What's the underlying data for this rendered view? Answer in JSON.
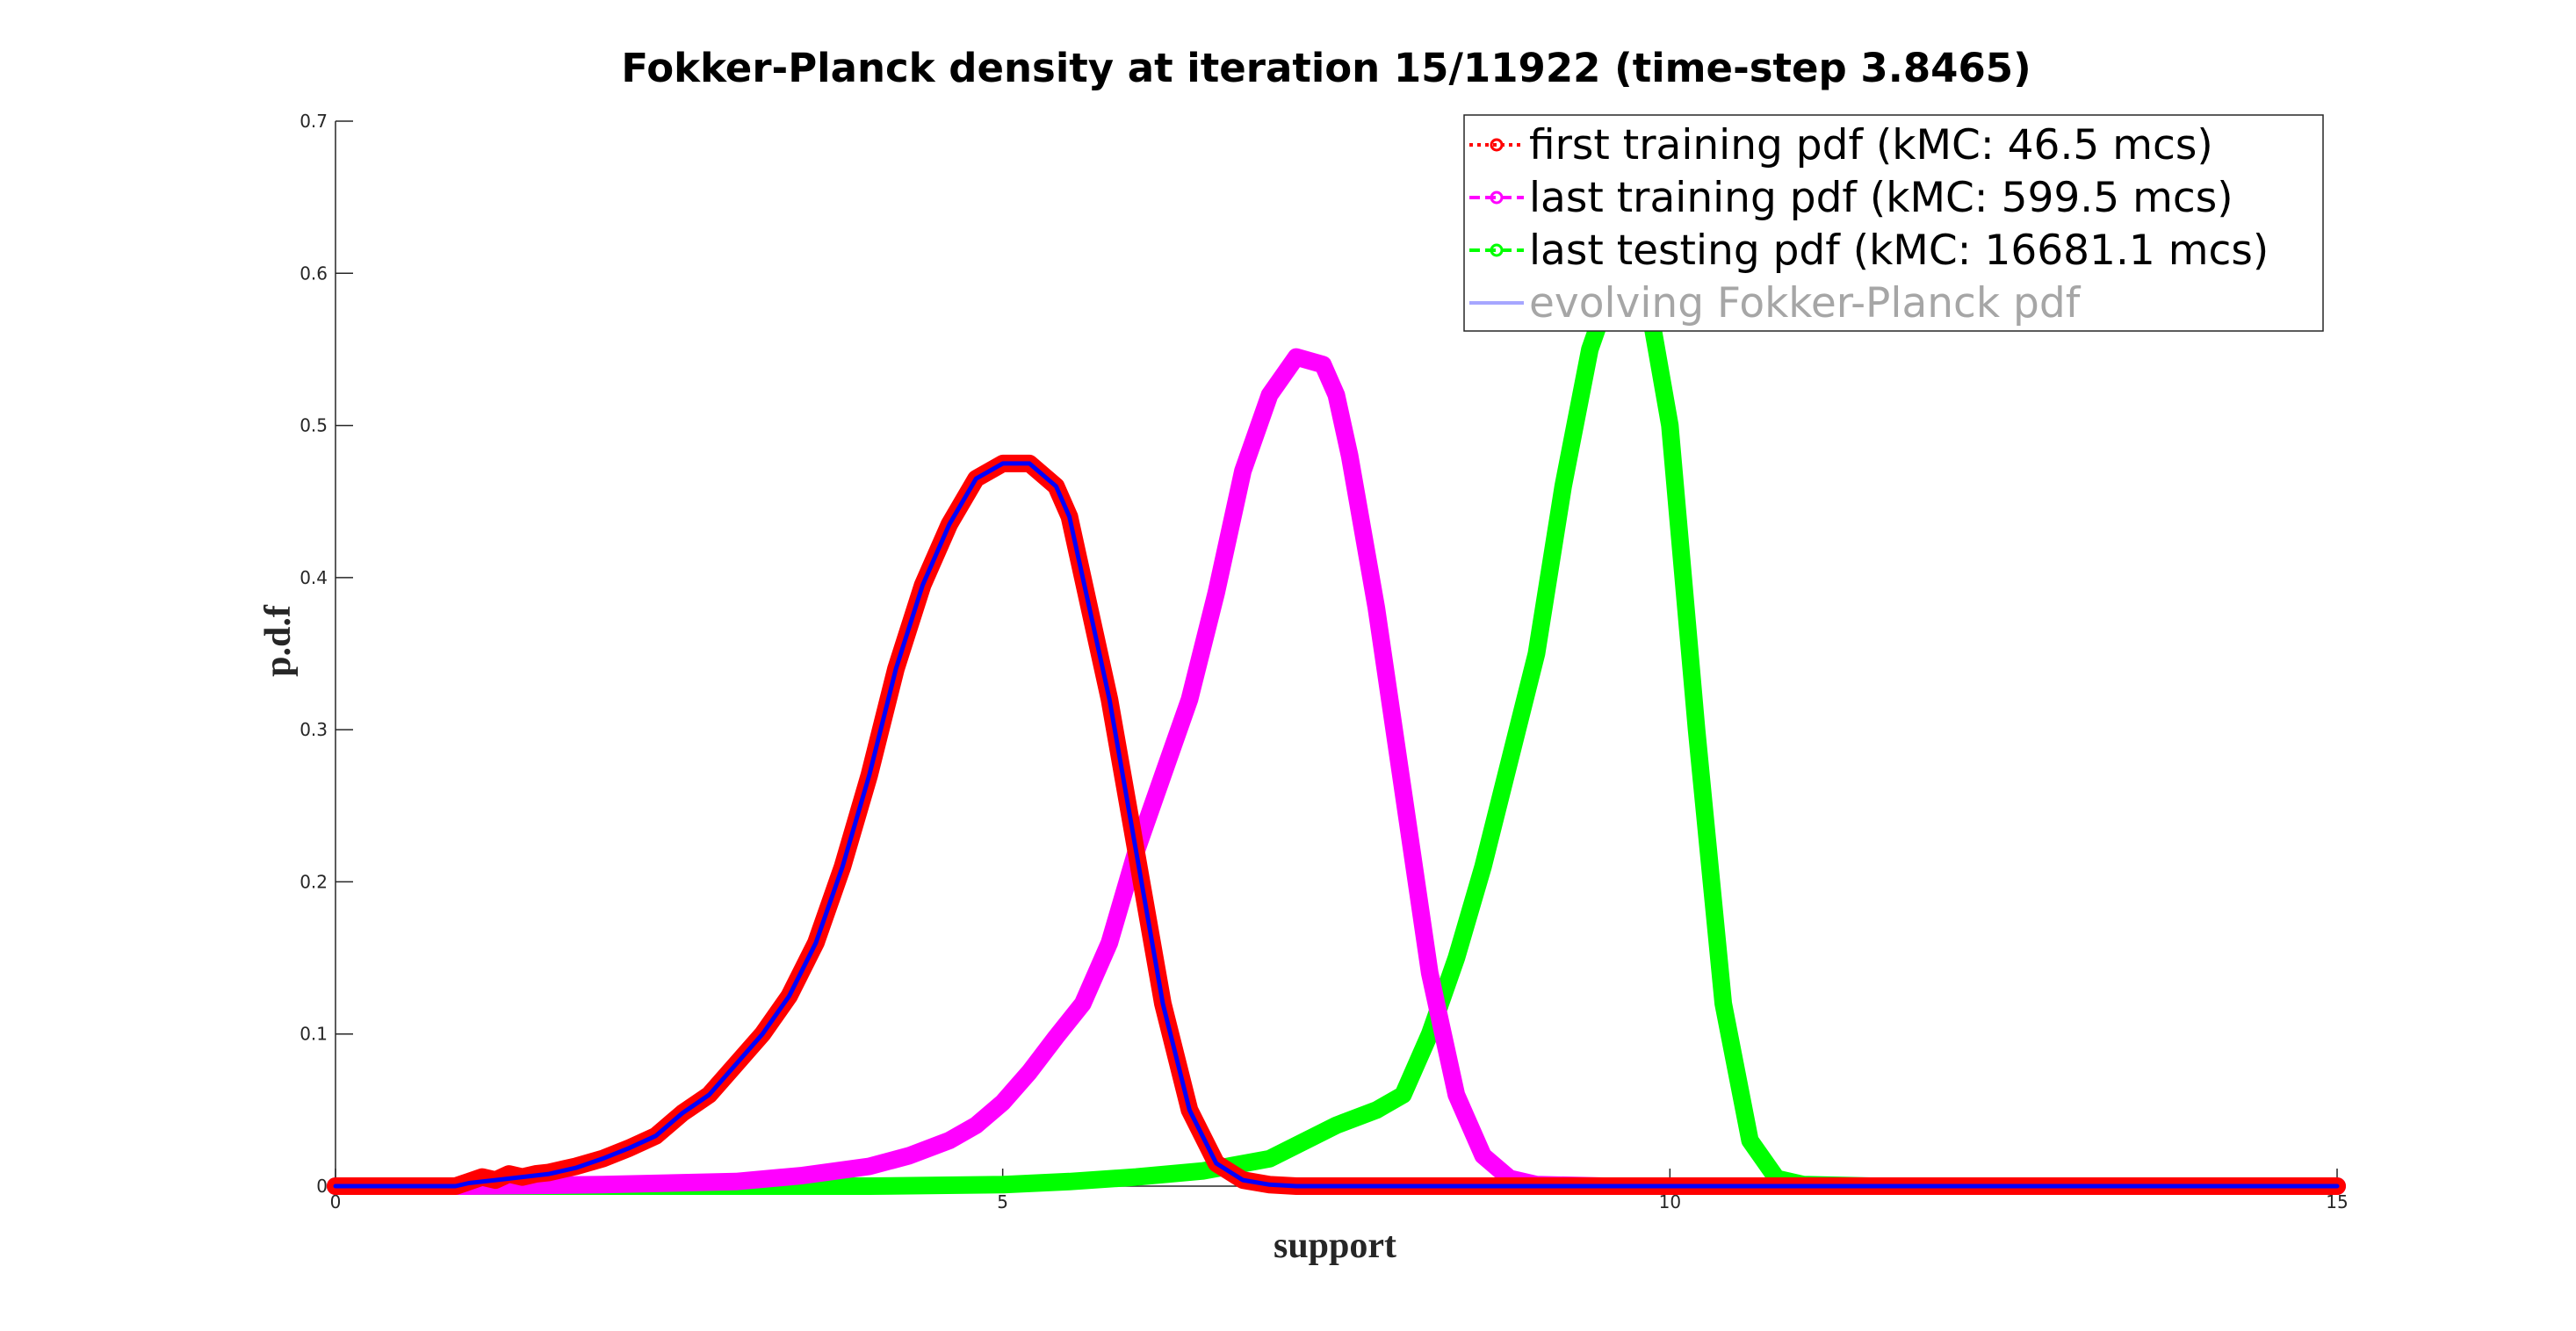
{
  "chart_data": {
    "type": "line",
    "title": "Fokker-Planck density at iteration 15/11922 (time-step 3.8465)",
    "xlabel": "support",
    "ylabel": "p.d.f",
    "xlim": [
      0,
      15
    ],
    "ylim": [
      0,
      0.7
    ],
    "xticks": [
      0,
      5,
      10,
      15
    ],
    "xtick_labels": [
      "0",
      "5",
      "10",
      "15"
    ],
    "yticks": [
      0,
      0.1,
      0.2,
      0.3,
      0.4,
      0.5,
      0.6,
      0.7
    ],
    "ytick_labels": [
      "0",
      "0.1",
      "0.2",
      "0.3",
      "0.4",
      "0.5",
      "0.6",
      "0.7"
    ],
    "grid": false,
    "legend_position": "top-right",
    "series": [
      {
        "name": "first training pdf (kMC: 46.5 mcs)",
        "color": "#ff0000",
        "line_style": "dotted",
        "marker": "circle",
        "x": [
          0,
          0.5,
          0.9,
          1.0,
          1.1,
          1.2,
          1.3,
          1.4,
          1.5,
          1.6,
          1.7,
          1.8,
          2.0,
          2.2,
          2.4,
          2.6,
          2.8,
          3.0,
          3.2,
          3.4,
          3.6,
          3.8,
          4.0,
          4.2,
          4.4,
          4.6,
          4.8,
          5.0,
          5.2,
          5.4,
          5.5,
          5.6,
          5.8,
          6.0,
          6.2,
          6.4,
          6.6,
          6.8,
          7.0,
          7.2,
          7.5,
          8.0,
          9.0,
          10.0,
          11.0,
          12.0,
          13.0,
          14.0,
          15.0
        ],
        "y": [
          0,
          0,
          0,
          0.003,
          0.006,
          0.004,
          0.008,
          0.006,
          0.008,
          0.009,
          0.011,
          0.013,
          0.018,
          0.025,
          0.033,
          0.048,
          0.06,
          0.08,
          0.1,
          0.125,
          0.16,
          0.21,
          0.27,
          0.34,
          0.395,
          0.435,
          0.465,
          0.475,
          0.475,
          0.46,
          0.44,
          0.4,
          0.32,
          0.22,
          0.12,
          0.05,
          0.015,
          0.004,
          0.001,
          0,
          0,
          0,
          0,
          0,
          0,
          0,
          0,
          0,
          0
        ]
      },
      {
        "name": "last training pdf (kMC: 599.5 mcs)",
        "color": "#ff00ff",
        "line_style": "dashed",
        "marker": "circle",
        "x": [
          0,
          1.0,
          2.0,
          3.0,
          3.5,
          4.0,
          4.3,
          4.6,
          4.8,
          5.0,
          5.2,
          5.4,
          5.6,
          5.8,
          6.0,
          6.2,
          6.4,
          6.6,
          6.8,
          7.0,
          7.2,
          7.4,
          7.5,
          7.6,
          7.8,
          8.0,
          8.2,
          8.4,
          8.6,
          8.8,
          9.0,
          9.5,
          10.0,
          11.0,
          12.0,
          13.0,
          14.0,
          15.0
        ],
        "y": [
          0,
          0,
          0.001,
          0.003,
          0.007,
          0.013,
          0.02,
          0.03,
          0.04,
          0.055,
          0.075,
          0.098,
          0.12,
          0.16,
          0.22,
          0.27,
          0.32,
          0.39,
          0.47,
          0.52,
          0.545,
          0.54,
          0.52,
          0.48,
          0.38,
          0.26,
          0.14,
          0.06,
          0.02,
          0.005,
          0.001,
          0,
          0,
          0,
          0,
          0,
          0,
          0
        ]
      },
      {
        "name": "last testing pdf (kMC: 16681.1 mcs)",
        "color": "#00ff00",
        "line_style": "dashed",
        "marker": "circle",
        "x": [
          0,
          2.0,
          4.0,
          5.0,
          5.5,
          6.0,
          6.5,
          7.0,
          7.5,
          7.8,
          8.0,
          8.2,
          8.4,
          8.6,
          8.8,
          9.0,
          9.2,
          9.4,
          9.6,
          9.7,
          9.8,
          10.0,
          10.2,
          10.4,
          10.6,
          10.8,
          11.0,
          11.5,
          12.0,
          13.0,
          14.0,
          15.0
        ],
        "y": [
          0,
          0,
          0,
          0.001,
          0.003,
          0.006,
          0.01,
          0.018,
          0.04,
          0.05,
          0.06,
          0.1,
          0.15,
          0.21,
          0.28,
          0.35,
          0.46,
          0.55,
          0.6,
          0.61,
          0.6,
          0.5,
          0.3,
          0.12,
          0.03,
          0.005,
          0.001,
          0,
          0,
          0,
          0,
          0
        ]
      },
      {
        "name": "evolving Fokker-Planck pdf",
        "color": "#0000ff",
        "line_style": "solid",
        "marker": "none",
        "x": [
          0,
          0.5,
          0.9,
          1.0,
          1.2,
          1.4,
          1.6,
          1.8,
          2.0,
          2.2,
          2.4,
          2.6,
          2.8,
          3.0,
          3.2,
          3.4,
          3.6,
          3.8,
          4.0,
          4.2,
          4.4,
          4.6,
          4.8,
          5.0,
          5.2,
          5.4,
          5.5,
          5.6,
          5.8,
          6.0,
          6.2,
          6.4,
          6.6,
          6.8,
          7.0,
          7.2,
          7.5,
          8.0,
          9.0,
          10.0,
          11.0,
          12.0,
          13.0,
          14.0,
          15.0
        ],
        "y": [
          0,
          0,
          0,
          0.002,
          0.004,
          0.006,
          0.008,
          0.012,
          0.018,
          0.025,
          0.033,
          0.048,
          0.06,
          0.08,
          0.1,
          0.125,
          0.16,
          0.21,
          0.27,
          0.34,
          0.395,
          0.435,
          0.465,
          0.475,
          0.475,
          0.46,
          0.44,
          0.4,
          0.32,
          0.22,
          0.12,
          0.05,
          0.015,
          0.004,
          0.001,
          0,
          0,
          0,
          0,
          0,
          0,
          0,
          0,
          0,
          0
        ]
      }
    ]
  }
}
